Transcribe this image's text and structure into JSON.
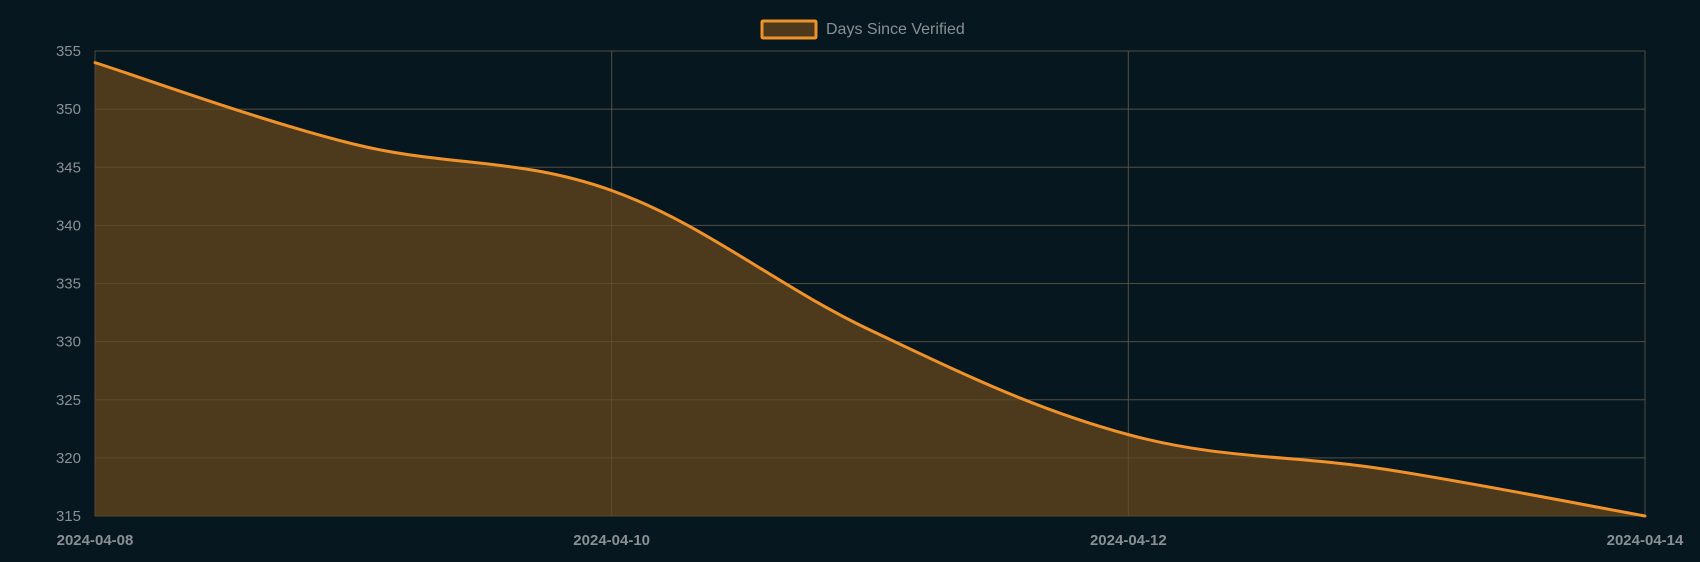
{
  "chart_data": {
    "type": "area",
    "x": [
      "2024-04-08",
      "2024-04-09",
      "2024-04-10",
      "2024-04-11",
      "2024-04-12",
      "2024-04-13",
      "2024-04-14"
    ],
    "series": [
      {
        "name": "Days Since Verified",
        "values": [
          354,
          347,
          343,
          331,
          322,
          319,
          315
        ]
      }
    ],
    "x_tick_labels": [
      "2024-04-08",
      "2024-04-10",
      "2024-04-12",
      "2024-04-14"
    ],
    "y_tick_labels": [
      "315",
      "320",
      "325",
      "330",
      "335",
      "340",
      "345",
      "350",
      "355"
    ],
    "ylim": [
      315,
      355
    ],
    "xlim": [
      "2024-04-08",
      "2024-04-14"
    ],
    "grid": true,
    "legend_position": "top-center",
    "colors": {
      "line": "#f0922a",
      "fill": "#4d3a1d",
      "grid": "#2d3d45",
      "background": "#061720",
      "text": "#8a8f94"
    }
  }
}
